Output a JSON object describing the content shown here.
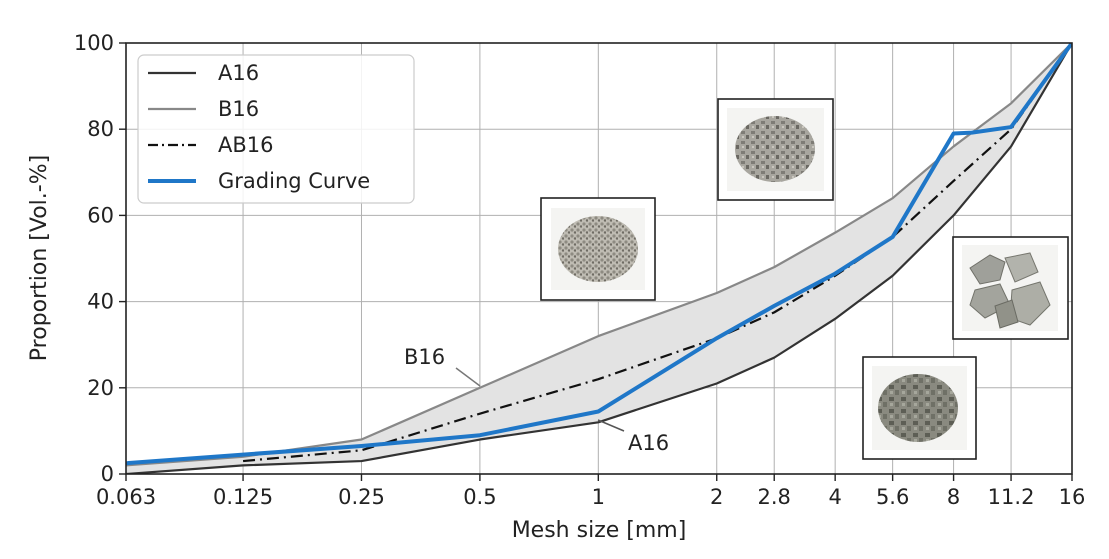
{
  "chart_data": {
    "type": "line",
    "xlabel": "Mesh size [mm]",
    "ylabel": "Proportion [Vol.-%]",
    "x_scale": "log2",
    "xlim": [
      0.063,
      16
    ],
    "ylim": [
      0,
      100
    ],
    "x_tick_labels": [
      "0.063",
      "0.125",
      "0.25",
      "0.5",
      "1",
      "2",
      "2.8",
      "4",
      "5.6",
      "8",
      "11.2",
      "16"
    ],
    "x_tick_values": [
      0.063,
      0.125,
      0.25,
      0.5,
      1,
      2,
      2.8,
      4,
      5.6,
      8,
      11.2,
      16
    ],
    "y_ticks": [
      0,
      20,
      40,
      60,
      80,
      100
    ],
    "grid": true,
    "legend_position": "top-left",
    "series": [
      {
        "name": "A16",
        "color": "#333333",
        "style": "solid",
        "x": [
          0.063,
          0.125,
          0.25,
          0.5,
          1,
          2,
          2.8,
          4,
          5.6,
          8,
          11.2,
          16
        ],
        "y": [
          0,
          2,
          3,
          8,
          12,
          21,
          27,
          36,
          46,
          60,
          76,
          100
        ]
      },
      {
        "name": "B16",
        "color": "#888888",
        "style": "solid",
        "x": [
          0.063,
          0.125,
          0.25,
          0.5,
          1,
          2,
          2.8,
          4,
          5.6,
          8,
          11.2,
          16
        ],
        "y": [
          2,
          4,
          8,
          20,
          32,
          42,
          48,
          56,
          64,
          76,
          86,
          100
        ]
      },
      {
        "name": "AB16",
        "color": "#111111",
        "style": "dashdot",
        "x": [
          0.125,
          0.25,
          0.5,
          1,
          2,
          2.8,
          4,
          5.6,
          8,
          11.2,
          16
        ],
        "y": [
          3,
          5.5,
          14,
          22,
          31.5,
          37.5,
          46,
          55,
          68,
          80,
          100
        ]
      },
      {
        "name": "Grading Curve",
        "color": "#1f77c8",
        "style": "solid",
        "x": [
          0.063,
          0.125,
          0.25,
          0.5,
          1,
          2,
          2.8,
          4,
          5.6,
          8,
          8.9,
          11.2,
          16
        ],
        "y": [
          2.5,
          4.5,
          6.5,
          9,
          14.5,
          31.5,
          39,
          46.5,
          55,
          79,
          79.2,
          80.5,
          100
        ]
      }
    ],
    "fill_between": {
      "lower": "A16",
      "upper": "B16",
      "color": "#e3e3e3"
    },
    "annotations": [
      {
        "text": "B16",
        "target_series": "B16",
        "target_x": 0.5
      },
      {
        "text": "A16",
        "target_series": "A16",
        "target_x": 1
      }
    ]
  }
}
